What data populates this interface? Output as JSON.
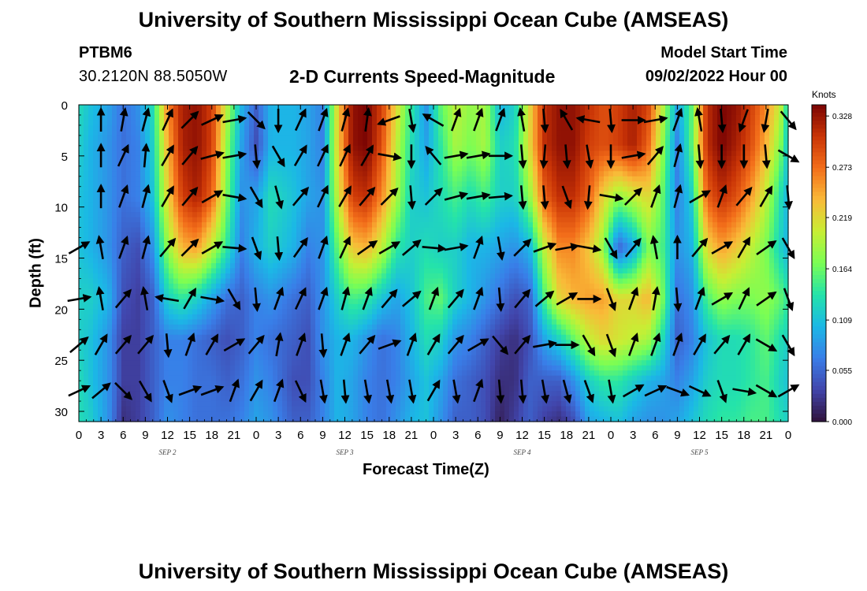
{
  "header": {
    "title": "University of Southern Mississippi Ocean Cube (AMSEAS)",
    "station": "PTBM6",
    "coordinates": "30.2120N  88.5050W",
    "subtitle": "2-D Currents Speed-Magnitude",
    "model_start_label": "Model Start Time",
    "model_start_date": "09/02/2022 Hour 00"
  },
  "footer": {
    "title": "University of Southern Mississippi Ocean Cube (AMSEAS)"
  },
  "chart_data": {
    "type": "heatmap",
    "title": "2-D Currents Speed-Magnitude",
    "xlabel": "Forecast Time(Z)",
    "ylabel": "Depth (ft)",
    "xlim": [
      0,
      96
    ],
    "ylim": [
      31,
      0
    ],
    "x_tick_labels": [
      "0",
      "3",
      "6",
      "9",
      "12",
      "15",
      "18",
      "21",
      "0",
      "3",
      "6",
      "9",
      "12",
      "15",
      "18",
      "21",
      "0",
      "3",
      "6",
      "9",
      "12",
      "15",
      "18",
      "21",
      "0",
      "3",
      "6",
      "9",
      "12",
      "15",
      "18",
      "21",
      "0"
    ],
    "x_tick_hours": [
      0,
      3,
      6,
      9,
      12,
      15,
      18,
      21,
      24,
      27,
      30,
      33,
      36,
      39,
      42,
      45,
      48,
      51,
      54,
      57,
      60,
      63,
      66,
      69,
      72,
      75,
      78,
      81,
      84,
      87,
      90,
      93,
      96
    ],
    "day_labels": [
      {
        "label": "SEP 2",
        "hour": 12
      },
      {
        "label": "SEP 3",
        "hour": 36
      },
      {
        "label": "SEP 4",
        "hour": 60
      },
      {
        "label": "SEP 5",
        "hour": 84
      }
    ],
    "y_ticks": [
      0,
      5,
      10,
      15,
      20,
      25,
      30
    ],
    "colorbar": {
      "units": "Knots",
      "min": 0.0,
      "max": 0.34,
      "tick_values": [
        0.328,
        0.273,
        0.219,
        0.164,
        0.109,
        0.055,
        0.0
      ],
      "tick_labels": [
        "0.328",
        "0.273",
        "0.219",
        "0.164",
        "0.109",
        "0.055",
        "0.000"
      ]
    },
    "speed_field": {
      "columns": [
        {
          "hour": 0,
          "profile": [
            0.13,
            0.12,
            0.11,
            0.11,
            0.12,
            0.12,
            0.13,
            0.13
          ]
        },
        {
          "hour": 1.5,
          "profile": [
            0.11,
            0.1,
            0.1,
            0.1,
            0.12,
            0.11,
            0.11,
            0.12
          ]
        },
        {
          "hour": 4,
          "profile": [
            0.09,
            0.08,
            0.08,
            0.08,
            0.1,
            0.08,
            0.08,
            0.08
          ]
        },
        {
          "hour": 6,
          "profile": [
            0.06,
            0.06,
            0.06,
            0.05,
            0.04,
            0.03,
            0.03,
            0.02
          ]
        },
        {
          "hour": 8,
          "profile": [
            0.08,
            0.07,
            0.07,
            0.04,
            0.03,
            0.03,
            0.03,
            0.03
          ]
        },
        {
          "hour": 10,
          "profile": [
            0.13,
            0.12,
            0.11,
            0.08,
            0.05,
            0.05,
            0.05,
            0.05
          ]
        },
        {
          "hour": 12,
          "profile": [
            0.26,
            0.24,
            0.22,
            0.18,
            0.12,
            0.07,
            0.07,
            0.08
          ]
        },
        {
          "hour": 14,
          "profile": [
            0.32,
            0.32,
            0.3,
            0.24,
            0.14,
            0.07,
            0.07,
            0.07
          ]
        },
        {
          "hour": 16,
          "profile": [
            0.33,
            0.33,
            0.32,
            0.25,
            0.12,
            0.06,
            0.06,
            0.06
          ]
        },
        {
          "hour": 18,
          "profile": [
            0.3,
            0.3,
            0.28,
            0.2,
            0.09,
            0.05,
            0.06,
            0.06
          ]
        },
        {
          "hour": 20,
          "profile": [
            0.2,
            0.18,
            0.17,
            0.14,
            0.06,
            0.04,
            0.05,
            0.06
          ]
        },
        {
          "hour": 22,
          "profile": [
            0.1,
            0.09,
            0.08,
            0.07,
            0.05,
            0.05,
            0.06,
            0.07
          ]
        },
        {
          "hour": 24,
          "profile": [
            0.05,
            0.04,
            0.09,
            0.1,
            0.07,
            0.07,
            0.08,
            0.09
          ]
        },
        {
          "hour": 26,
          "profile": [
            0.1,
            0.1,
            0.13,
            0.12,
            0.08,
            0.06,
            0.07,
            0.08
          ]
        },
        {
          "hour": 29,
          "profile": [
            0.1,
            0.1,
            0.11,
            0.1,
            0.06,
            0.05,
            0.04,
            0.05
          ]
        },
        {
          "hour": 31,
          "profile": [
            0.09,
            0.09,
            0.09,
            0.07,
            0.05,
            0.04,
            0.04,
            0.05
          ]
        },
        {
          "hour": 33,
          "profile": [
            0.07,
            0.07,
            0.08,
            0.08,
            0.08,
            0.08,
            0.07,
            0.07
          ]
        },
        {
          "hour": 35,
          "profile": [
            0.22,
            0.22,
            0.2,
            0.16,
            0.12,
            0.1,
            0.1,
            0.1
          ]
        },
        {
          "hour": 37,
          "profile": [
            0.33,
            0.33,
            0.3,
            0.23,
            0.15,
            0.1,
            0.09,
            0.09
          ]
        },
        {
          "hour": 39,
          "profile": [
            0.34,
            0.34,
            0.31,
            0.24,
            0.14,
            0.08,
            0.07,
            0.07
          ]
        },
        {
          "hour": 41,
          "profile": [
            0.3,
            0.29,
            0.26,
            0.2,
            0.11,
            0.06,
            0.06,
            0.06
          ]
        },
        {
          "hour": 43,
          "profile": [
            0.22,
            0.2,
            0.19,
            0.14,
            0.09,
            0.07,
            0.07,
            0.08
          ]
        },
        {
          "hour": 45,
          "profile": [
            0.14,
            0.13,
            0.12,
            0.12,
            0.11,
            0.1,
            0.09,
            0.1
          ]
        },
        {
          "hour": 47,
          "profile": [
            0.08,
            0.09,
            0.11,
            0.13,
            0.15,
            0.13,
            0.11,
            0.11
          ]
        },
        {
          "hour": 49,
          "profile": [
            0.16,
            0.14,
            0.13,
            0.12,
            0.16,
            0.12,
            0.09,
            0.08
          ]
        },
        {
          "hour": 51,
          "profile": [
            0.2,
            0.19,
            0.15,
            0.12,
            0.12,
            0.08,
            0.06,
            0.05
          ]
        },
        {
          "hour": 53,
          "profile": [
            0.18,
            0.17,
            0.13,
            0.1,
            0.1,
            0.07,
            0.05,
            0.05
          ]
        },
        {
          "hour": 55,
          "profile": [
            0.19,
            0.19,
            0.15,
            0.1,
            0.08,
            0.05,
            0.04,
            0.04
          ]
        },
        {
          "hour": 57,
          "profile": [
            0.1,
            0.12,
            0.12,
            0.09,
            0.06,
            0.03,
            0.02,
            0.01
          ]
        },
        {
          "hour": 59,
          "profile": [
            0.12,
            0.13,
            0.12,
            0.08,
            0.04,
            0.02,
            0.02,
            0.03
          ]
        },
        {
          "hour": 61,
          "profile": [
            0.22,
            0.22,
            0.18,
            0.1,
            0.05,
            0.04,
            0.05,
            0.05
          ]
        },
        {
          "hour": 63,
          "profile": [
            0.31,
            0.31,
            0.28,
            0.2,
            0.15,
            0.09,
            0.05,
            0.03
          ]
        },
        {
          "hour": 65,
          "profile": [
            0.33,
            0.33,
            0.31,
            0.26,
            0.22,
            0.12,
            0.05,
            0.02
          ]
        },
        {
          "hour": 67,
          "profile": [
            0.33,
            0.33,
            0.31,
            0.26,
            0.24,
            0.16,
            0.08,
            0.04
          ]
        },
        {
          "hour": 69,
          "profile": [
            0.31,
            0.3,
            0.28,
            0.23,
            0.25,
            0.2,
            0.12,
            0.09
          ]
        },
        {
          "hour": 71,
          "profile": [
            0.29,
            0.29,
            0.22,
            0.18,
            0.25,
            0.22,
            0.14,
            0.1
          ]
        },
        {
          "hour": 73,
          "profile": [
            0.3,
            0.3,
            0.18,
            0.05,
            0.22,
            0.21,
            0.14,
            0.11
          ]
        },
        {
          "hour": 75,
          "profile": [
            0.32,
            0.32,
            0.2,
            0.09,
            0.22,
            0.2,
            0.12,
            0.09
          ]
        },
        {
          "hour": 77,
          "profile": [
            0.3,
            0.28,
            0.22,
            0.17,
            0.24,
            0.19,
            0.1,
            0.08
          ]
        },
        {
          "hour": 79,
          "profile": [
            0.2,
            0.18,
            0.16,
            0.15,
            0.17,
            0.13,
            0.09,
            0.08
          ]
        },
        {
          "hour": 81,
          "profile": [
            0.09,
            0.07,
            0.07,
            0.08,
            0.06,
            0.05,
            0.07,
            0.09
          ]
        },
        {
          "hour": 83,
          "profile": [
            0.16,
            0.16,
            0.12,
            0.1,
            0.08,
            0.07,
            0.09,
            0.11
          ]
        },
        {
          "hour": 85,
          "profile": [
            0.31,
            0.31,
            0.28,
            0.22,
            0.15,
            0.11,
            0.12,
            0.13
          ]
        },
        {
          "hour": 87,
          "profile": [
            0.34,
            0.34,
            0.31,
            0.25,
            0.18,
            0.13,
            0.13,
            0.14
          ]
        },
        {
          "hour": 89,
          "profile": [
            0.33,
            0.32,
            0.29,
            0.23,
            0.17,
            0.13,
            0.13,
            0.14
          ]
        },
        {
          "hour": 91,
          "profile": [
            0.3,
            0.29,
            0.25,
            0.2,
            0.17,
            0.14,
            0.14,
            0.15
          ]
        },
        {
          "hour": 93,
          "profile": [
            0.26,
            0.24,
            0.2,
            0.17,
            0.18,
            0.16,
            0.15,
            0.15
          ]
        },
        {
          "hour": 95,
          "profile": [
            0.2,
            0.17,
            0.13,
            0.12,
            0.16,
            0.13,
            0.12,
            0.13
          ]
        },
        {
          "hour": 96,
          "profile": [
            0.12,
            0.11,
            0.1,
            0.1,
            0.14,
            0.12,
            0.11,
            0.12
          ]
        }
      ],
      "profile_depths": [
        0,
        4,
        9,
        14,
        19,
        23,
        27,
        31
      ]
    },
    "vector_depths": [
      1.5,
      5,
      9,
      14,
      19,
      23.5,
      28
    ],
    "vector_hours": [
      0,
      3,
      6,
      9,
      12,
      15,
      18,
      21,
      24,
      27,
      30,
      33,
      36,
      39,
      42,
      45,
      48,
      51,
      54,
      57,
      60,
      63,
      66,
      69,
      72,
      75,
      78,
      81,
      84,
      87,
      90,
      93,
      96
    ],
    "vector_directions_deg": [
      [
        null,
        360,
        10,
        15,
        25,
        45,
        65,
        80,
        135,
        180,
        25,
        20,
        15,
        8,
        250,
        170,
        300,
        20,
        20,
        20,
        350,
        175,
        330,
        280,
        175,
        90,
        80,
        20,
        350,
        175,
        200,
        190,
        140
      ],
      [
        null,
        360,
        25,
        5,
        30,
        40,
        75,
        80,
        175,
        150,
        30,
        25,
        25,
        30,
        100,
        180,
        320,
        80,
        80,
        90,
        175,
        185,
        175,
        170,
        180,
        80,
        40,
        15,
        175,
        180,
        180,
        175,
        120
      ],
      [
        null,
        360,
        20,
        15,
        30,
        40,
        60,
        100,
        150,
        165,
        40,
        25,
        30,
        40,
        45,
        175,
        45,
        75,
        80,
        85,
        175,
        175,
        160,
        185,
        100,
        45,
        20,
        15,
        60,
        20,
        40,
        30,
        175
      ],
      [
        60,
        350,
        20,
        15,
        40,
        45,
        60,
        95,
        160,
        175,
        35,
        20,
        25,
        55,
        60,
        50,
        95,
        80,
        20,
        170,
        45,
        70,
        80,
        100,
        150,
        40,
        350,
        360,
        40,
        60,
        30,
        55,
        150
      ],
      [
        80,
        350,
        40,
        350,
        280,
        30,
        100,
        150,
        175,
        20,
        25,
        20,
        15,
        20,
        40,
        50,
        20,
        40,
        20,
        175,
        40,
        50,
        60,
        90,
        160,
        20,
        10,
        175,
        20,
        60,
        25,
        55,
        160
      ],
      [
        50,
        30,
        40,
        40,
        175,
        20,
        30,
        60,
        40,
        10,
        20,
        175,
        20,
        40,
        70,
        20,
        30,
        40,
        60,
        140,
        40,
        80,
        90,
        150,
        160,
        20,
        20,
        20,
        30,
        40,
        30,
        120,
        150
      ],
      [
        65,
        50,
        135,
        150,
        160,
        70,
        70,
        20,
        30,
        20,
        155,
        170,
        175,
        170,
        170,
        170,
        30,
        170,
        20,
        175,
        175,
        170,
        165,
        160,
        170,
        60,
        65,
        110,
        115,
        160,
        100,
        120,
        60
      ]
    ]
  }
}
